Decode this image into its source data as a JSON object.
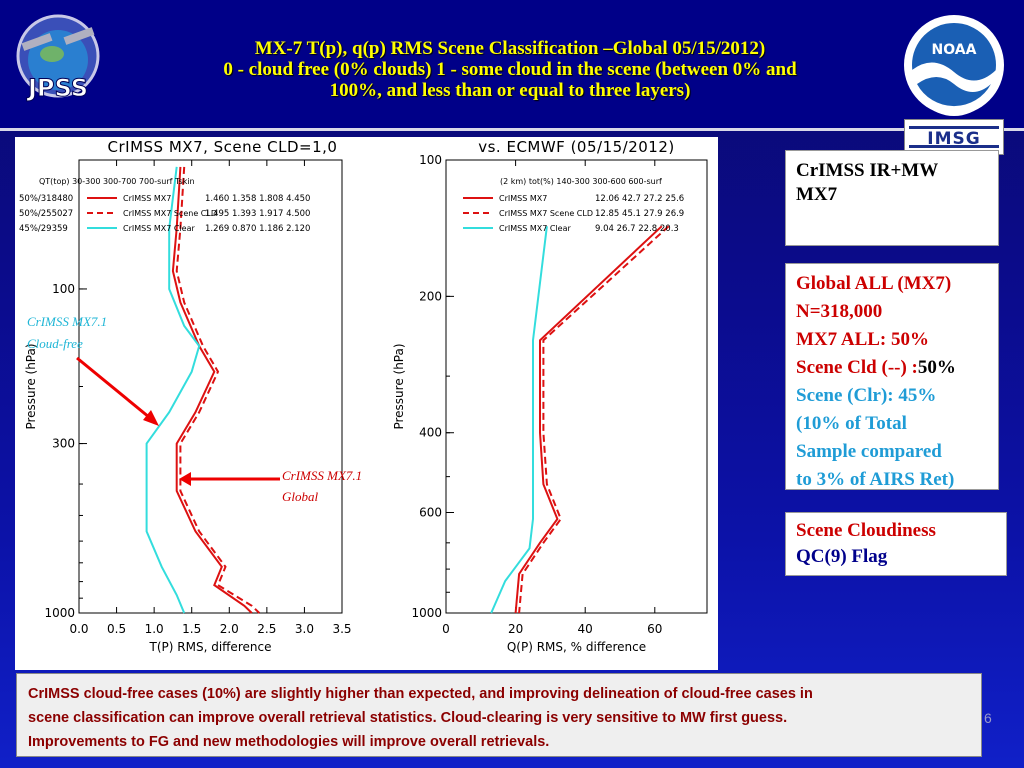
{
  "title": {
    "line1": "MX-7 T(p), q(p) RMS Scene Classification –Global 05/15/2012)",
    "line2": "0 - cloud free (0% clouds) 1 - some cloud in the scene (between 0% and",
    "line3": "100%, and less than or equal to three layers)"
  },
  "logos": {
    "jpss": "JPSS",
    "noaa": "NOAA",
    "imsg": "IMSG"
  },
  "panel_crimss": {
    "line1": "CrIMSS IR+MW",
    "line2": "MX7"
  },
  "panel_global": {
    "l1": "Global ALL (MX7)",
    "l2": "N=318,000",
    "l3": "MX7 ALL:   50%",
    "l4a": "Scene Cld (--) :",
    "l4b": "50%",
    "l5": "Scene (Clr): 45%",
    "l6": "(10% of Total",
    "l7": "Sample  compared",
    "l8": "to 3% of AIRS Ret)"
  },
  "panel_cloudiness": {
    "l1": "Scene Cloudiness",
    "l2": "QC(9) Flag"
  },
  "annotations": {
    "clear_l1": "CrIMSS MX7.1",
    "clear_l2": "Cloud-free",
    "global_l1": "CrIMSS MX7.1",
    "global_l2": "Global"
  },
  "footer": {
    "l1": "CrIMSS cloud-free cases (10%) are slightly higher than expected, and improving  delineation of cloud-free cases  in",
    "l2": "scene classification can improve overall retrieval statistics. Cloud-clearing is very sensitive to MW first guess.",
    "l3": "Improvements to FG and new methodologies will improve overall retrievals."
  },
  "page_number": "6",
  "colors": {
    "all": "#dd1111",
    "cld": "#dd1111",
    "clear": "#33dddd",
    "title_yellow": "#ffff00"
  },
  "chart_data": [
    {
      "type": "line",
      "title": "CrIMSS MX7, Scene CLD=1,0",
      "xlabel": "T(P) RMS, difference",
      "ylabel": "Pressure (hPa)",
      "xlim": [
        0,
        3.5
      ],
      "ylim": [
        1000,
        40
      ],
      "y_log": true,
      "xticks": [
        "0.0",
        "0.5",
        "1.0",
        "1.5",
        "2.0",
        "2.5",
        "3.0",
        "3.5"
      ],
      "yticks": [
        "100",
        "300",
        "1000"
      ],
      "stats_header": [
        "QT(top)",
        "30-300",
        "300-700",
        "700-surf",
        "Tskin"
      ],
      "series": [
        {
          "name": "CrIMSS MX7",
          "qt": "50%/318480",
          "style": "solid",
          "stats": [
            "1.460",
            "1.358",
            "1.808",
            "4.450"
          ],
          "points": [
            [
              1.35,
              42
            ],
            [
              1.3,
              65
            ],
            [
              1.25,
              88
            ],
            [
              1.35,
              110
            ],
            [
              1.6,
              150
            ],
            [
              1.8,
              180
            ],
            [
              1.55,
              240
            ],
            [
              1.3,
              300
            ],
            [
              1.3,
              420
            ],
            [
              1.55,
              560
            ],
            [
              1.9,
              720
            ],
            [
              1.8,
              820
            ],
            [
              2.2,
              950
            ],
            [
              2.3,
              1000
            ]
          ]
        },
        {
          "name": "CrIMSS MX7 Scene CLD",
          "qt": "50%/255027",
          "style": "dashed",
          "stats": [
            "1.495",
            "1.393",
            "1.917",
            "4.500"
          ],
          "points": [
            [
              1.4,
              42
            ],
            [
              1.35,
              65
            ],
            [
              1.3,
              88
            ],
            [
              1.4,
              110
            ],
            [
              1.65,
              150
            ],
            [
              1.85,
              180
            ],
            [
              1.6,
              240
            ],
            [
              1.35,
              300
            ],
            [
              1.35,
              420
            ],
            [
              1.6,
              560
            ],
            [
              1.95,
              720
            ],
            [
              1.85,
              820
            ],
            [
              2.3,
              950
            ],
            [
              2.4,
              1000
            ]
          ]
        },
        {
          "name": "CrIMSS MX7 Clear",
          "qt": "45%/29359",
          "style": "solid",
          "stats": [
            "1.269",
            "0.870",
            "1.186",
            "2.120"
          ],
          "points": [
            [
              1.3,
              42
            ],
            [
              1.2,
              65
            ],
            [
              1.2,
              100
            ],
            [
              1.4,
              130
            ],
            [
              1.6,
              150
            ],
            [
              1.5,
              180
            ],
            [
              1.2,
              240
            ],
            [
              0.9,
              300
            ],
            [
              0.9,
              420
            ],
            [
              0.9,
              560
            ],
            [
              1.1,
              720
            ],
            [
              1.3,
              880
            ],
            [
              1.4,
              1000
            ]
          ]
        }
      ]
    },
    {
      "type": "line",
      "title": "vs. ECMWF (05/15/2012)",
      "xlabel": "Q(P) RMS, % difference",
      "ylabel": "Pressure (hPa)",
      "xlim": [
        0,
        75
      ],
      "ylim": [
        1000,
        100
      ],
      "y_log": true,
      "xticks": [
        "0",
        "20",
        "40",
        "60"
      ],
      "yticks": [
        "100",
        "200",
        "400",
        "600",
        "1000"
      ],
      "stats_header": [
        "(2 km)",
        "tot(%)",
        "140-300",
        "300-600",
        "600-surf"
      ],
      "series": [
        {
          "name": "CrIMSS MX7",
          "style": "solid",
          "stats": [
            "12.06",
            "42.7",
            "27.2",
            "25.6"
          ],
          "points": [
            [
              62,
              140
            ],
            [
              27,
              250
            ],
            [
              27,
              400
            ],
            [
              28,
              520
            ],
            [
              32,
              620
            ],
            [
              27,
              700
            ],
            [
              21,
              820
            ],
            [
              20,
              1000
            ]
          ]
        },
        {
          "name": "CrIMSS MX7 Scene CLD",
          "style": "dashed",
          "stats": [
            "12.85",
            "45.1",
            "27.9",
            "26.9"
          ],
          "points": [
            [
              64,
              140
            ],
            [
              28,
              250
            ],
            [
              28,
              400
            ],
            [
              29,
              520
            ],
            [
              33,
              620
            ],
            [
              28,
              700
            ],
            [
              22,
              820
            ],
            [
              21,
              1000
            ]
          ]
        },
        {
          "name": "CrIMSS MX7 Clear",
          "style": "solid",
          "stats": [
            "9.04",
            "26.7",
            "22.8",
            "20.3"
          ],
          "points": [
            [
              29,
              140
            ],
            [
              25,
              250
            ],
            [
              25,
              400
            ],
            [
              25,
              520
            ],
            [
              25,
              620
            ],
            [
              24,
              720
            ],
            [
              17,
              850
            ],
            [
              13,
              1000
            ]
          ]
        }
      ]
    }
  ]
}
